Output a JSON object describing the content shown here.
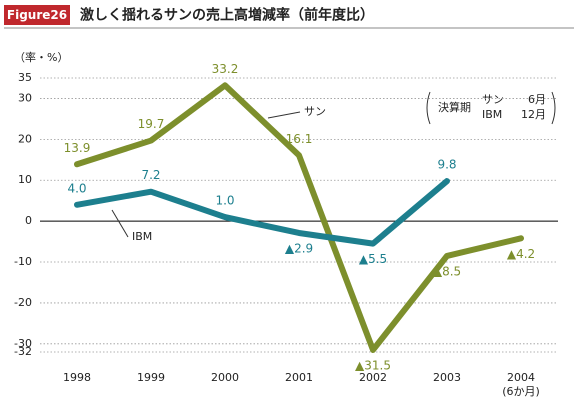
{
  "chart_data": {
    "type": "line",
    "badge": "Figure26",
    "title": "激しく揺れるサンの売上高増減率（前年度比）",
    "y_label": "（率・%）",
    "categories": [
      "1998",
      "1999",
      "2000",
      "2001",
      "2002",
      "2003",
      "2004 (6か月)"
    ],
    "series": [
      {
        "name": "サン",
        "color": "#7d8f2c",
        "values": [
          13.9,
          19.7,
          33.2,
          16.1,
          -31.5,
          -8.5,
          -4.2
        ],
        "value_labels": [
          "13.9",
          "19.7",
          "33.2",
          "16.1",
          "▲31.5",
          "▲8.5",
          "▲4.2"
        ]
      },
      {
        "name": "IBM",
        "color": "#1d7f8e",
        "values": [
          4.0,
          7.2,
          1.0,
          -2.9,
          -5.5,
          9.8,
          null
        ],
        "value_labels": [
          "4.0",
          "7.2",
          "1.0",
          "▲2.9",
          "▲5.5",
          "9.8",
          null
        ]
      }
    ],
    "ylim": [
      -32,
      35
    ],
    "yticks": [
      35,
      30,
      20,
      10,
      0,
      -10,
      -20,
      -30,
      -32
    ],
    "grid": true,
    "legend_note": {
      "heading": "決算期",
      "rows": [
        [
          "サン",
          "6月"
        ],
        [
          "IBM",
          "12月"
        ]
      ]
    }
  }
}
